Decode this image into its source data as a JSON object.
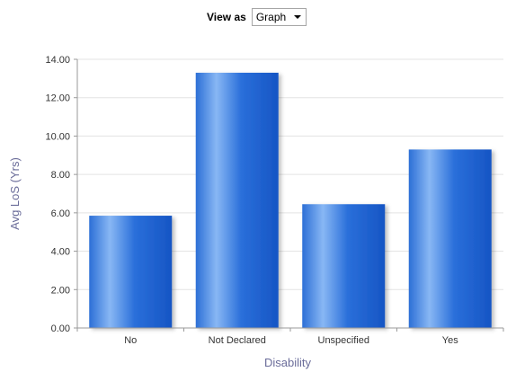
{
  "view_as": {
    "label": "View as",
    "selected": "Graph"
  },
  "colors": {
    "bar_dark": "#1a5fcc",
    "bar_light": "#7fb0f2",
    "axis": "#9a9a9a",
    "grid": "#e3e3e3",
    "axis_title": "#6b6d9a"
  },
  "chart_data": {
    "type": "bar",
    "categories": [
      "No",
      "Not Declared",
      "Unspecified",
      "Yes"
    ],
    "values": [
      5.85,
      13.3,
      6.45,
      9.3
    ],
    "xlabel": "Disability",
    "ylabel": "Avg LoS (Yrs)",
    "ylim": [
      0,
      14
    ],
    "yticks": [
      "0.00",
      "2.00",
      "4.00",
      "6.00",
      "8.00",
      "10.00",
      "12.00",
      "14.00"
    ],
    "grid": true,
    "legend": "none"
  }
}
